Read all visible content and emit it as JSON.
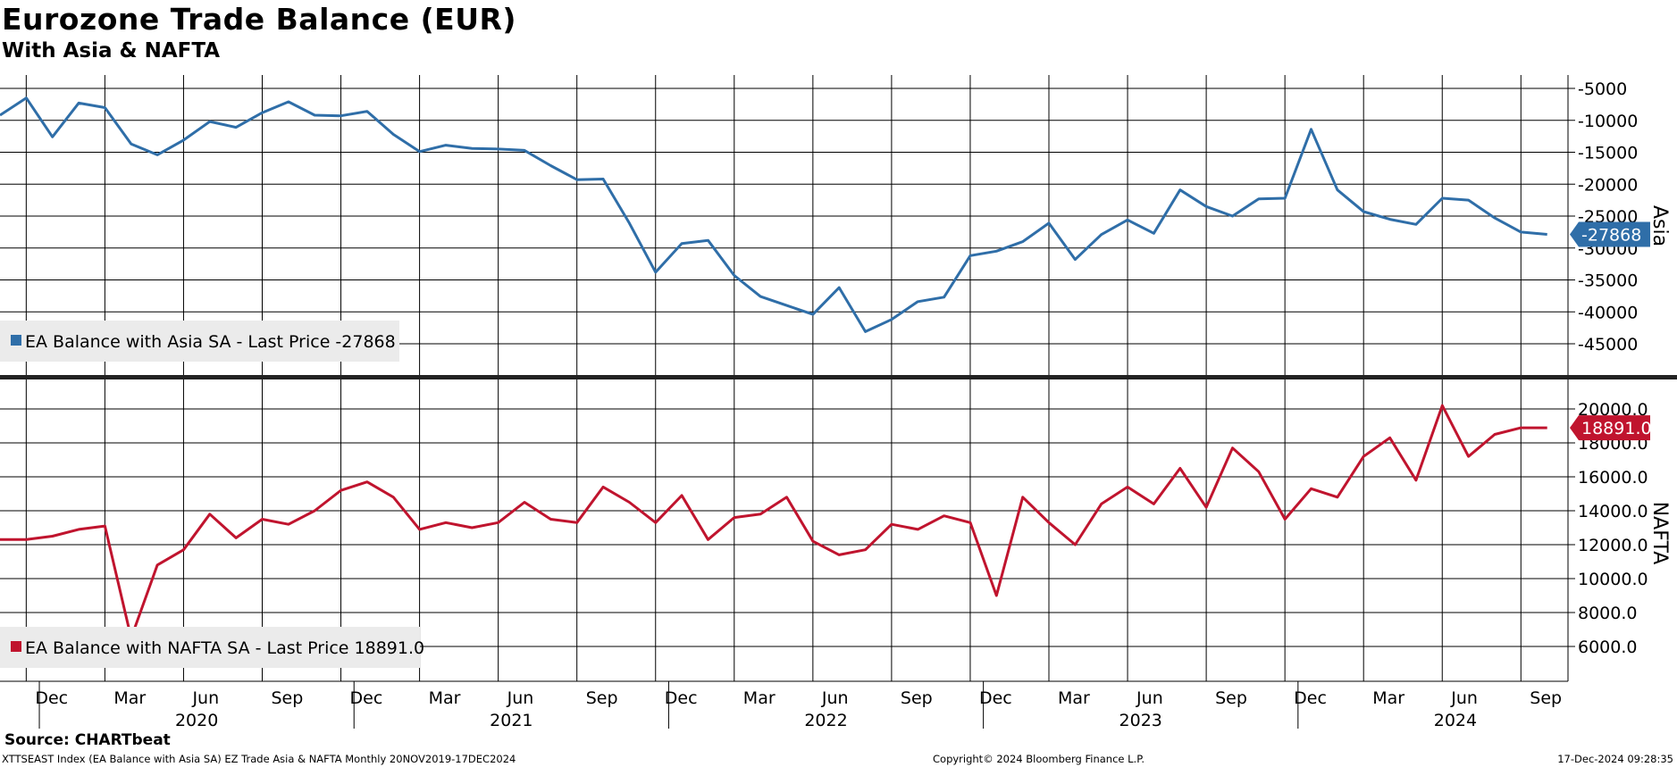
{
  "header": {
    "title": "Eurozone Trade Balance (EUR)",
    "subtitle": "With Asia & NAFTA"
  },
  "footer": {
    "source": "Source: CHARTbeat",
    "index_info": "XTTSEAST Index (EA Balance with Asia SA) EZ Trade Asia & NAFTA  Monthly 20NOV2019-17DEC2024",
    "copyright": "Copyright© 2024 Bloomberg Finance L.P.",
    "timestamp": "17-Dec-2024 09:28:35"
  },
  "colors": {
    "asia": "#2f6ea8",
    "nafta": "#c0142e",
    "grid": "#000000",
    "legend_bg": "#ebebeb"
  },
  "chart_data": [
    {
      "type": "line",
      "panel": "top",
      "ylabel": "Asia",
      "ylim": [
        -50000,
        -2700
      ],
      "y_ticks": [
        -5000,
        -10000,
        -15000,
        -20000,
        -25000,
        -30000,
        -35000,
        -40000,
        -45000
      ],
      "y_tick_labels": [
        "-5000",
        "-10000",
        "-15000",
        "-20000",
        "-25000",
        "-30000",
        "-35000",
        "-40000",
        "-45000"
      ],
      "grid": true,
      "legend_position": "bottom-left",
      "last_value_label": "-27868",
      "x": [
        "2019-11",
        "2019-12",
        "2020-01",
        "2020-02",
        "2020-03",
        "2020-04",
        "2020-05",
        "2020-06",
        "2020-07",
        "2020-08",
        "2020-09",
        "2020-10",
        "2020-11",
        "2020-12",
        "2021-01",
        "2021-02",
        "2021-03",
        "2021-04",
        "2021-05",
        "2021-06",
        "2021-07",
        "2021-08",
        "2021-09",
        "2021-10",
        "2021-11",
        "2021-12",
        "2022-01",
        "2022-02",
        "2022-03",
        "2022-04",
        "2022-05",
        "2022-06",
        "2022-07",
        "2022-08",
        "2022-09",
        "2022-10",
        "2022-11",
        "2022-12",
        "2023-01",
        "2023-02",
        "2023-03",
        "2023-04",
        "2023-05",
        "2023-06",
        "2023-07",
        "2023-08",
        "2023-09",
        "2023-10",
        "2023-11",
        "2023-12",
        "2024-01",
        "2024-02",
        "2024-03",
        "2024-04",
        "2024-05",
        "2024-06",
        "2024-07",
        "2024-08",
        "2024-09",
        "2024-10"
      ],
      "series": [
        {
          "name": "EA Balance with Asia SA - Last Price -27868",
          "color": "#2f6ea8",
          "values": [
            -9200,
            -6500,
            -12600,
            -7300,
            -8000,
            -13700,
            -15400,
            -13100,
            -10200,
            -11100,
            -8800,
            -7100,
            -9200,
            -9300,
            -8600,
            -12200,
            -14900,
            -13900,
            -14400,
            -14500,
            -14700,
            -17100,
            -19300,
            -19200,
            -26100,
            -33800,
            -29300,
            -28800,
            -34300,
            -37600,
            -39000,
            -40400,
            -36200,
            -43100,
            -41200,
            -38400,
            -37700,
            -31200,
            -30500,
            -29000,
            -26100,
            -31800,
            -27900,
            -25600,
            -27700,
            -20900,
            -23500,
            -25000,
            -22300,
            -22200,
            -11400,
            -20900,
            -24300,
            -25500,
            -26300,
            -22200,
            -22500,
            -25300,
            -27500,
            -27868
          ]
        }
      ]
    },
    {
      "type": "line",
      "panel": "bottom",
      "ylabel": "NAFTA",
      "ylim": [
        4000,
        21500
      ],
      "y_ticks": [
        20000,
        18000,
        16000,
        14000,
        12000,
        10000,
        8000,
        6000
      ],
      "y_tick_labels": [
        "20000.0",
        "18000.0",
        "16000.0",
        "14000.0",
        "12000.0",
        "10000.0",
        "8000.0",
        "6000.0"
      ],
      "grid": true,
      "legend_position": "bottom-left",
      "last_value_label": "18891.0",
      "x_tick_labels": [
        "Dec",
        "Mar",
        "Jun",
        "Sep",
        "Dec",
        "Mar",
        "Jun",
        "Sep",
        "Dec",
        "Mar",
        "Jun",
        "Sep",
        "Dec",
        "Mar",
        "Jun",
        "Sep",
        "Dec",
        "Mar",
        "Jun",
        "Sep"
      ],
      "x_year_labels": [
        "2020",
        "2021",
        "2022",
        "2023",
        "2024"
      ],
      "x": [
        "2019-11",
        "2019-12",
        "2020-01",
        "2020-02",
        "2020-03",
        "2020-04",
        "2020-05",
        "2020-06",
        "2020-07",
        "2020-08",
        "2020-09",
        "2020-10",
        "2020-11",
        "2020-12",
        "2021-01",
        "2021-02",
        "2021-03",
        "2021-04",
        "2021-05",
        "2021-06",
        "2021-07",
        "2021-08",
        "2021-09",
        "2021-10",
        "2021-11",
        "2021-12",
        "2022-01",
        "2022-02",
        "2022-03",
        "2022-04",
        "2022-05",
        "2022-06",
        "2022-07",
        "2022-08",
        "2022-09",
        "2022-10",
        "2022-11",
        "2022-12",
        "2023-01",
        "2023-02",
        "2023-03",
        "2023-04",
        "2023-05",
        "2023-06",
        "2023-07",
        "2023-08",
        "2023-09",
        "2023-10",
        "2023-11",
        "2023-12",
        "2024-01",
        "2024-02",
        "2024-03",
        "2024-04",
        "2024-05",
        "2024-06",
        "2024-07",
        "2024-08",
        "2024-09",
        "2024-10"
      ],
      "series": [
        {
          "name": "EA Balance with NAFTA SA - Last Price 18891.0",
          "color": "#c0142e",
          "values": [
            12300,
            12300,
            12500,
            12900,
            13100,
            6500,
            10800,
            11700,
            13800,
            12400,
            13500,
            13200,
            14000,
            15200,
            15700,
            14800,
            12900,
            13300,
            13000,
            13300,
            14500,
            13500,
            13300,
            15400,
            14500,
            13300,
            14900,
            12300,
            13600,
            13800,
            14800,
            12200,
            11400,
            11700,
            13200,
            12900,
            13700,
            13300,
            9000,
            14800,
            13300,
            12000,
            14400,
            15400,
            14400,
            16500,
            14200,
            17700,
            16300,
            13500,
            15300,
            14800,
            17200,
            18300,
            15800,
            20200,
            17200,
            18500,
            18891,
            18891
          ]
        }
      ]
    }
  ]
}
